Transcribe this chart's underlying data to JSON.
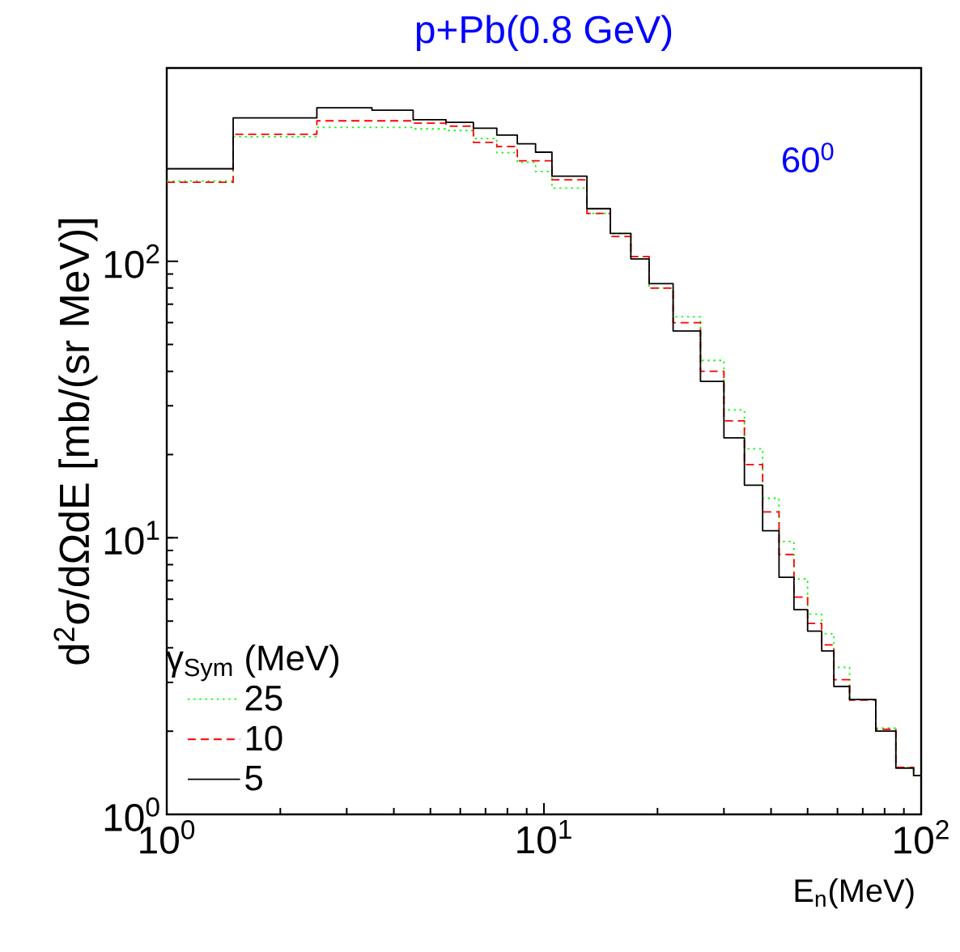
{
  "chart_data": {
    "type": "histogram",
    "title": "p+Pb(0.8 GeV)",
    "xlabel": "E$_{n}$(MeV)",
    "ylabel": "d$^{2}$σ/dΩdE [mb/(sr MeV)]",
    "legend_title": "γ$_{Sym}$ (MeV)",
    "annotations": [
      "60$^{0}$"
    ],
    "log": "xy",
    "legend": "bottom left",
    "marker": "none",
    "xlim": [
      1,
      100
    ],
    "ylim": [
      1,
      500
    ],
    "xticks": [
      {
        "value": 1,
        "label": "10$^{0}$"
      },
      {
        "value": 10,
        "label": "10$^{1}$"
      },
      {
        "value": 100,
        "label": "10$^{2}$"
      }
    ],
    "yticks": [
      {
        "value": 1,
        "label": "10$^{0}$"
      },
      {
        "value": 10,
        "label": "10$^{1}$"
      },
      {
        "value": 100,
        "label": "10$^{2}$"
      }
    ],
    "bins": [
      1,
      1.5,
      2.5,
      3.5,
      4.5,
      5.5,
      6.5,
      7.5,
      8.5,
      9.5,
      10.5,
      13,
      15,
      17,
      19,
      22,
      26,
      30,
      34,
      38,
      42,
      46,
      50,
      54.5,
      58.7,
      64.6,
      75.8,
      85.7,
      95.5,
      100
    ],
    "series": [
      {
        "name": "25",
        "color": "#00ff00",
        "line_style": "dotted",
        "values": [
          195,
          282,
          305,
          305,
          301,
          297,
          278,
          247,
          228,
          211,
          184,
          149,
          126,
          104,
          80,
          63,
          43.8,
          29.0,
          21.0,
          13.9,
          9.7,
          7.1,
          5.3,
          4.5,
          3.4,
          2.6,
          2.05,
          1.48,
          1.38
        ]
      },
      {
        "name": "10",
        "color": "#ff0000",
        "line_style": "dashed",
        "values": [
          193,
          288,
          322,
          322,
          316,
          308,
          269,
          260,
          231,
          231,
          197,
          149,
          123,
          104,
          80,
          60,
          40,
          26.5,
          18.4,
          12.4,
          8.7,
          6.1,
          4.9,
          4.1,
          3.07,
          2.59,
          2.03,
          1.48,
          1.38
        ]
      },
      {
        "name": "5",
        "color": "#000000",
        "line_style": "solid",
        "values": [
          216,
          330,
          359,
          352,
          325,
          318,
          303,
          286,
          266,
          248,
          203,
          155,
          126,
          102,
          83,
          56,
          36.8,
          23.0,
          15.5,
          10.6,
          7.2,
          5.5,
          4.6,
          3.9,
          2.9,
          2.6,
          2.0,
          1.47,
          1.38
        ]
      }
    ]
  }
}
